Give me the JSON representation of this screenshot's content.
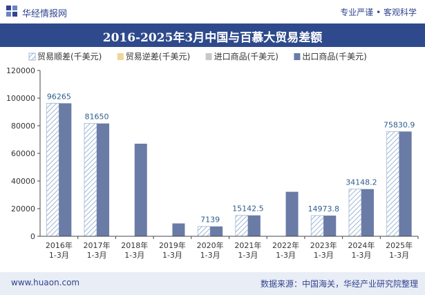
{
  "header": {
    "brand": "华经情报网",
    "tagline": "专业严谨 • 客观科学"
  },
  "chart_data": {
    "type": "bar",
    "title": "2016-2025年3月中国与百慕大贸易差额",
    "categories": [
      "2016年\n1-3月",
      "2017年\n1-3月",
      "2018年\n1-3月",
      "2019年\n1-3月",
      "2020年\n1-3月",
      "2021年\n1-3月",
      "2022年\n1-3月",
      "2023年\n1-3月",
      "2024年\n1-3月",
      "2025年\n1-3月"
    ],
    "series": [
      {
        "name": "贸易顺差(千美元)",
        "values": [
          96265,
          81650,
          0,
          0,
          7139,
          15142.5,
          0,
          14973.8,
          34148.2,
          75830.9
        ],
        "color": "#bcd0e6",
        "pattern": "hatch"
      },
      {
        "name": "贸易逆差(千美元)",
        "values": [
          0,
          0,
          0,
          0,
          0,
          0,
          0,
          0,
          0,
          0
        ],
        "color": "#f2d59a"
      },
      {
        "name": "进口商品(千美元)",
        "values": [
          0,
          0,
          0,
          0,
          0,
          0,
          0,
          0,
          0,
          0
        ],
        "color": "#c8c8c8"
      },
      {
        "name": "出口商品(千美元)",
        "values": [
          96265,
          81650,
          67000,
          9300,
          7139,
          15142.5,
          32200,
          14973.8,
          34148.2,
          75830.9
        ],
        "color": "#6a7ba6"
      }
    ],
    "data_labels": [
      "96265",
      "81650",
      "",
      "",
      "7139",
      "15142.5",
      "",
      "14973.8",
      "34148.2",
      "75830.9"
    ],
    "y_ticks": [
      "0",
      "20000",
      "40000",
      "60000",
      "80000",
      "100000",
      "120000"
    ],
    "ylim": [
      0,
      120000
    ],
    "grid": false,
    "legend": "top"
  },
  "footer": {
    "site": "www.huaon.com",
    "source": "数据来源：中国海关，华经产业研究院整理"
  }
}
